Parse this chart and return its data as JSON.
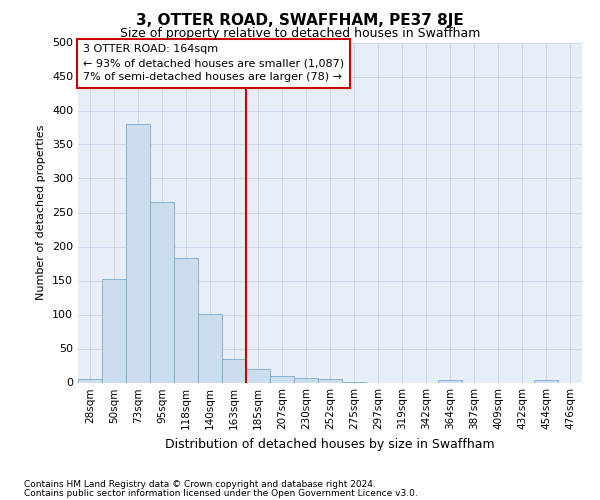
{
  "title": "3, OTTER ROAD, SWAFFHAM, PE37 8JE",
  "subtitle": "Size of property relative to detached houses in Swaffham",
  "xlabel": "Distribution of detached houses by size in Swaffham",
  "ylabel": "Number of detached properties",
  "footnote1": "Contains HM Land Registry data © Crown copyright and database right 2024.",
  "footnote2": "Contains public sector information licensed under the Open Government Licence v3.0.",
  "bar_labels": [
    "28sqm",
    "50sqm",
    "73sqm",
    "95sqm",
    "118sqm",
    "140sqm",
    "163sqm",
    "185sqm",
    "207sqm",
    "230sqm",
    "252sqm",
    "275sqm",
    "297sqm",
    "319sqm",
    "342sqm",
    "364sqm",
    "387sqm",
    "409sqm",
    "432sqm",
    "454sqm",
    "476sqm"
  ],
  "bar_values": [
    5,
    152,
    380,
    265,
    183,
    101,
    34,
    20,
    10,
    7,
    5,
    1,
    0,
    0,
    0,
    4,
    0,
    0,
    0,
    3,
    0
  ],
  "bar_color": "#ccddef",
  "bar_edge_color": "#7aaacc",
  "vline_index": 6,
  "vline_color": "#cc0000",
  "annotation_text_line1": "3 OTTER ROAD: 164sqm",
  "annotation_text_line2": "← 93% of detached houses are smaller (1,087)",
  "annotation_text_line3": "7% of semi-detached houses are larger (78) →",
  "annotation_box_color": "#ffffff",
  "annotation_box_edge": "#cc0000",
  "ylim": [
    0,
    500
  ],
  "yticks": [
    0,
    50,
    100,
    150,
    200,
    250,
    300,
    350,
    400,
    450,
    500
  ],
  "grid_color": "#c8d4e8",
  "background_color": "#e8eef8",
  "title_fontsize": 11,
  "subtitle_fontsize": 9,
  "ylabel_fontsize": 8,
  "xlabel_fontsize": 9,
  "tick_fontsize": 8,
  "xtick_fontsize": 7.5
}
